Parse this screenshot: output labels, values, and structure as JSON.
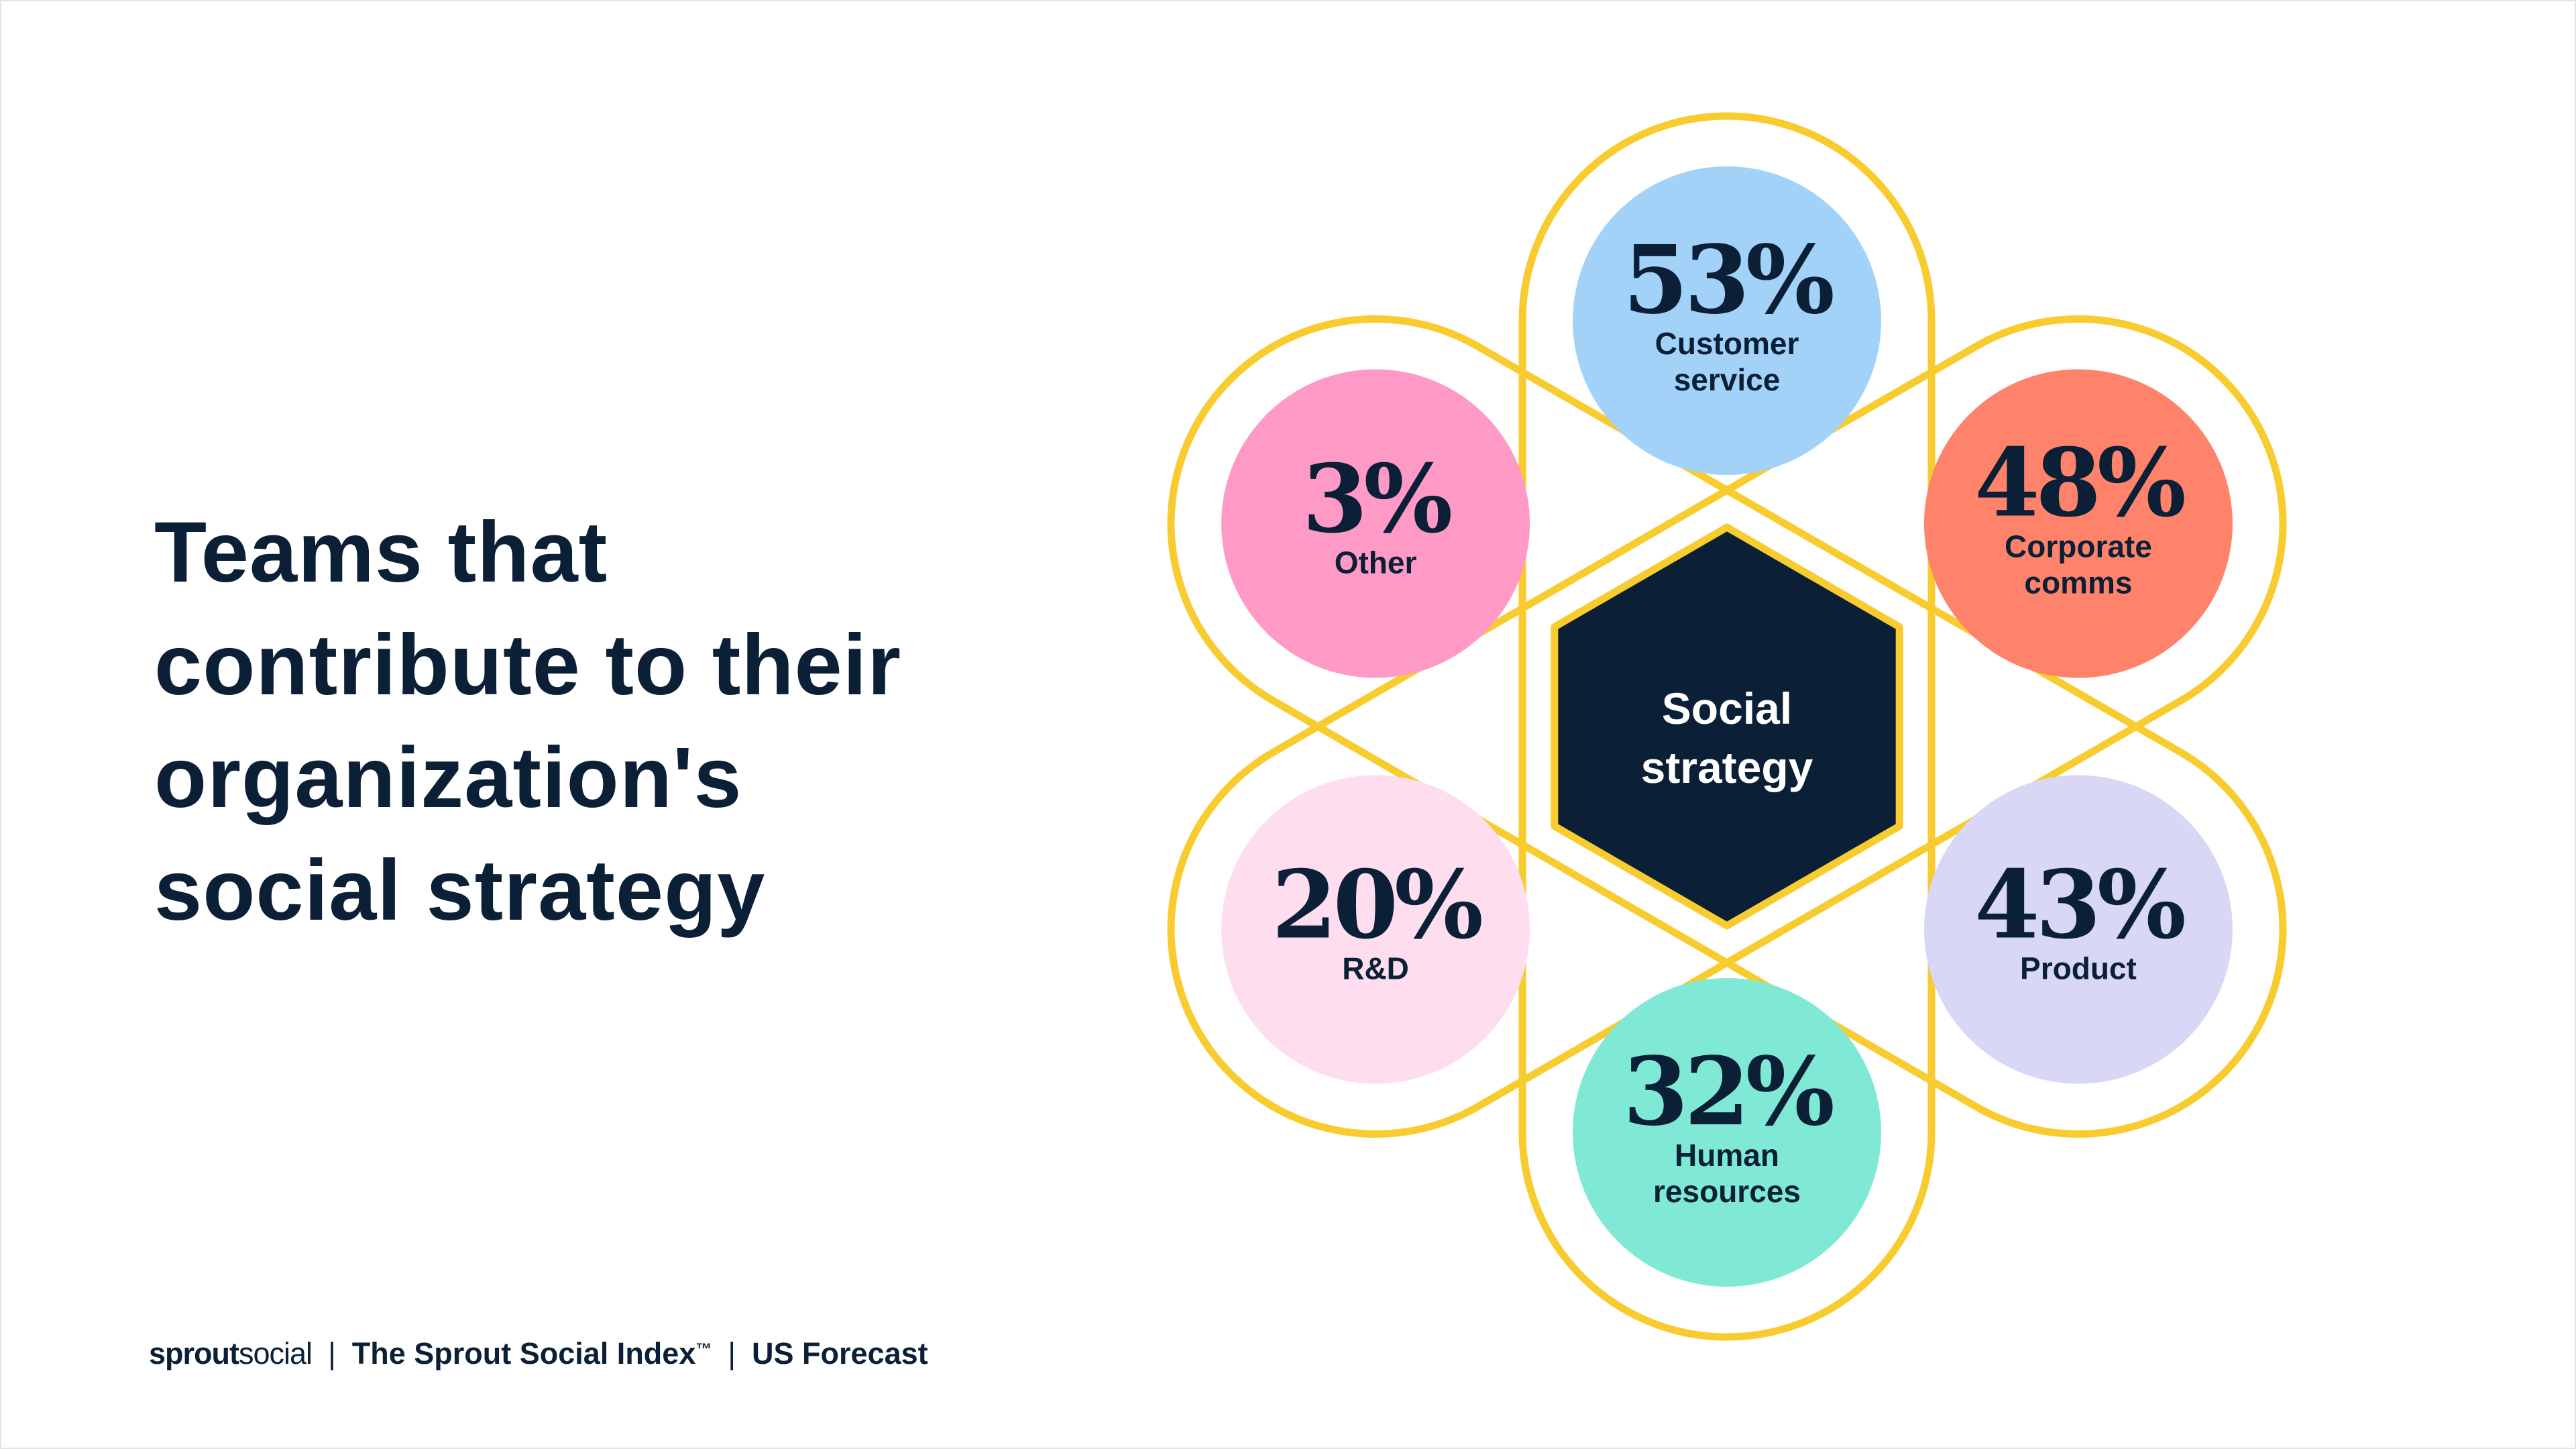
{
  "title_lines": [
    "Teams that",
    "contribute to their",
    "organization's",
    "social strategy"
  ],
  "center_label": [
    "Social",
    "strategy"
  ],
  "colors": {
    "text": "#0b2036",
    "outline": "#f8cb2e",
    "hexagon": "#0b2036",
    "background": "#ffffff"
  },
  "teams": [
    {
      "value": "53%",
      "label": [
        "Customer",
        "service"
      ],
      "color": "#a3d2f8"
    },
    {
      "value": "48%",
      "label": [
        "Corporate",
        "comms"
      ],
      "color": "#ff826b"
    },
    {
      "value": "43%",
      "label": [
        "Product"
      ],
      "color": "#d9d7f6"
    },
    {
      "value": "32%",
      "label": [
        "Human",
        "resources"
      ],
      "color": "#7fe9d6"
    },
    {
      "value": "20%",
      "label": [
        "R&D"
      ],
      "color": "#fdddee"
    },
    {
      "value": "3%",
      "label": [
        "Other"
      ],
      "color": "#ff99c5"
    }
  ],
  "footer": {
    "brand_bold": "sprout",
    "brand_light": "social",
    "separator": "|",
    "index": "The Sprout Social Index",
    "trademark": "™",
    "forecast": "US Forecast"
  }
}
